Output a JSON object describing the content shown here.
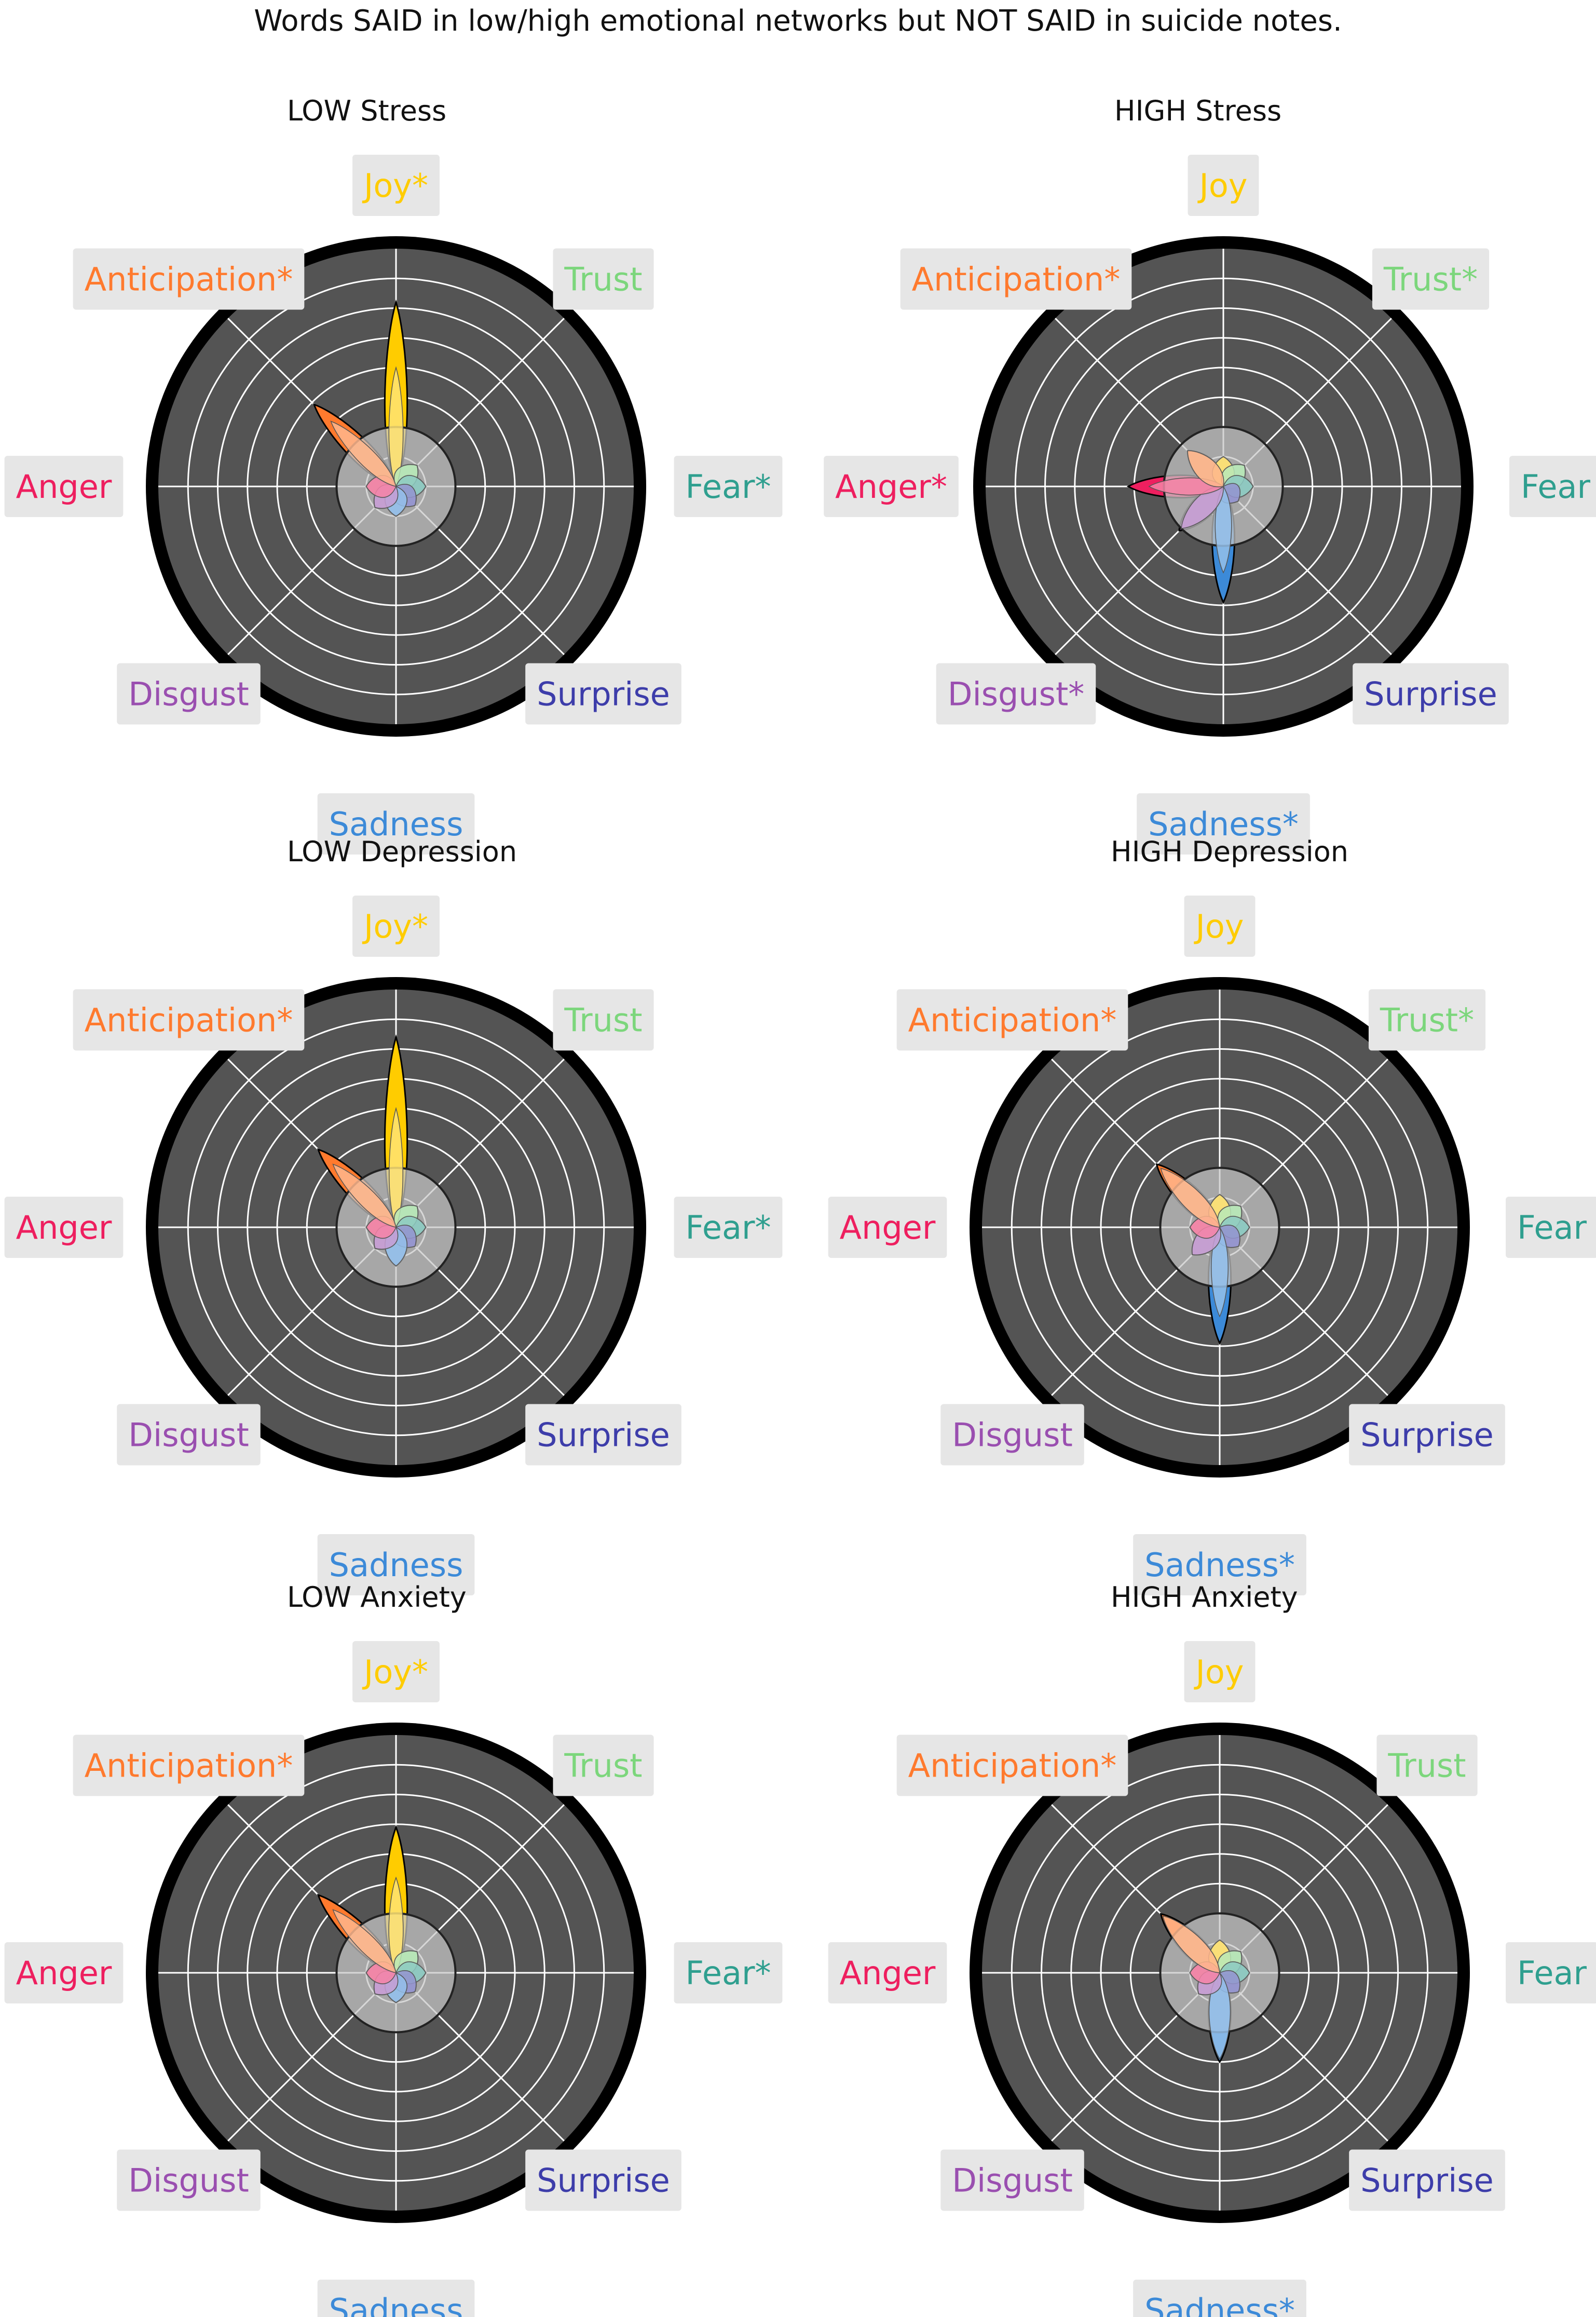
{
  "title": "Words SAID in low/high emotional networks but NOT SAID in suicide notes.",
  "emotion_colors": {
    "Joy": "#ffcc00",
    "Trust": "#7cd67c",
    "Fear": "#2f9f8f",
    "Surprise": "#3d3daa",
    "Sadness": "#3c8ad8",
    "Disgust": "#9a4fb0",
    "Anger": "#ee1f5f",
    "Anticipation": "#ff7a2e"
  },
  "chart_data": [
    {
      "type": "radar",
      "title": "LOW Stress",
      "emotions": [
        "Joy",
        "Trust",
        "Fear",
        "Surprise",
        "Sadness",
        "Disgust",
        "Anger",
        "Anticipation"
      ],
      "labels": [
        "Joy*",
        "Trust",
        "Fear*",
        "Surprise",
        "Sadness",
        "Disgust",
        "Anger",
        "Anticipation*"
      ],
      "values": [
        6.2,
        1.0,
        1.0,
        0.9,
        1.0,
        1.0,
        1.0,
        3.9
      ],
      "inner_values": [
        4.0,
        1.0,
        1.0,
        0.9,
        1.0,
        1.0,
        1.0,
        3.1
      ],
      "baseline": 2
    },
    {
      "type": "radar",
      "title": "HIGH Stress",
      "emotions": [
        "Joy",
        "Trust",
        "Fear",
        "Surprise",
        "Sadness",
        "Disgust",
        "Anger",
        "Anticipation"
      ],
      "labels": [
        "Joy",
        "Trust*",
        "Fear",
        "Surprise",
        "Sadness*",
        "Disgust*",
        "Anger*",
        "Anticipation*"
      ],
      "values": [
        1.0,
        1.0,
        1.0,
        0.7,
        3.9,
        2.1,
        3.2,
        1.7
      ],
      "inner_values": [
        1.0,
        1.0,
        1.0,
        0.7,
        2.9,
        2.0,
        2.5,
        1.7
      ],
      "baseline": 2
    },
    {
      "type": "radar",
      "title": "LOW Depression",
      "emotions": [
        "Joy",
        "Trust",
        "Fear",
        "Surprise",
        "Sadness",
        "Disgust",
        "Anger",
        "Anticipation"
      ],
      "labels": [
        "Joy*",
        "Trust",
        "Fear*",
        "Surprise",
        "Sadness",
        "Disgust",
        "Anger",
        "Anticipation*"
      ],
      "values": [
        6.4,
        1.0,
        1.0,
        0.9,
        1.3,
        1.0,
        1.0,
        3.7
      ],
      "inner_values": [
        4.0,
        1.0,
        1.0,
        0.9,
        1.3,
        1.0,
        1.0,
        3.0
      ],
      "baseline": 2
    },
    {
      "type": "radar",
      "title": "HIGH Depression",
      "emotions": [
        "Joy",
        "Trust",
        "Fear",
        "Surprise",
        "Sadness",
        "Disgust",
        "Anger",
        "Anticipation"
      ],
      "labels": [
        "Joy",
        "Trust*",
        "Fear",
        "Surprise",
        "Sadness*",
        "Disgust",
        "Anger",
        "Anticipation*"
      ],
      "values": [
        1.1,
        1.0,
        1.0,
        0.9,
        3.9,
        1.3,
        1.0,
        3.0
      ],
      "inner_values": [
        1.1,
        1.0,
        1.0,
        0.9,
        3.0,
        1.3,
        1.0,
        2.8
      ],
      "baseline": 2
    },
    {
      "type": "radar",
      "title": "LOW Anxiety",
      "emotions": [
        "Joy",
        "Trust",
        "Fear",
        "Surprise",
        "Sadness",
        "Disgust",
        "Anger",
        "Anticipation"
      ],
      "labels": [
        "Joy*",
        "Trust",
        "Fear*",
        "Surprise",
        "Sadness",
        "Disgust",
        "Anger",
        "Anticipation*"
      ],
      "values": [
        4.9,
        1.0,
        1.0,
        0.9,
        1.0,
        1.0,
        1.0,
        3.7
      ],
      "inner_values": [
        3.2,
        1.0,
        1.0,
        0.9,
        1.0,
        1.0,
        1.0,
        3.0
      ],
      "baseline": 2
    },
    {
      "type": "radar",
      "title": "HIGH Anxiety",
      "emotions": [
        "Joy",
        "Trust",
        "Fear",
        "Surprise",
        "Sadness",
        "Disgust",
        "Anger",
        "Anticipation"
      ],
      "labels": [
        "Joy",
        "Trust",
        "Fear",
        "Surprise",
        "Sadness*",
        "Disgust",
        "Anger",
        "Anticipation*"
      ],
      "values": [
        1.1,
        1.0,
        1.0,
        0.9,
        3.0,
        1.0,
        1.0,
        2.8
      ],
      "inner_values": [
        1.1,
        1.0,
        1.0,
        0.9,
        2.9,
        1.0,
        1.0,
        2.7
      ],
      "baseline": 2
    }
  ]
}
